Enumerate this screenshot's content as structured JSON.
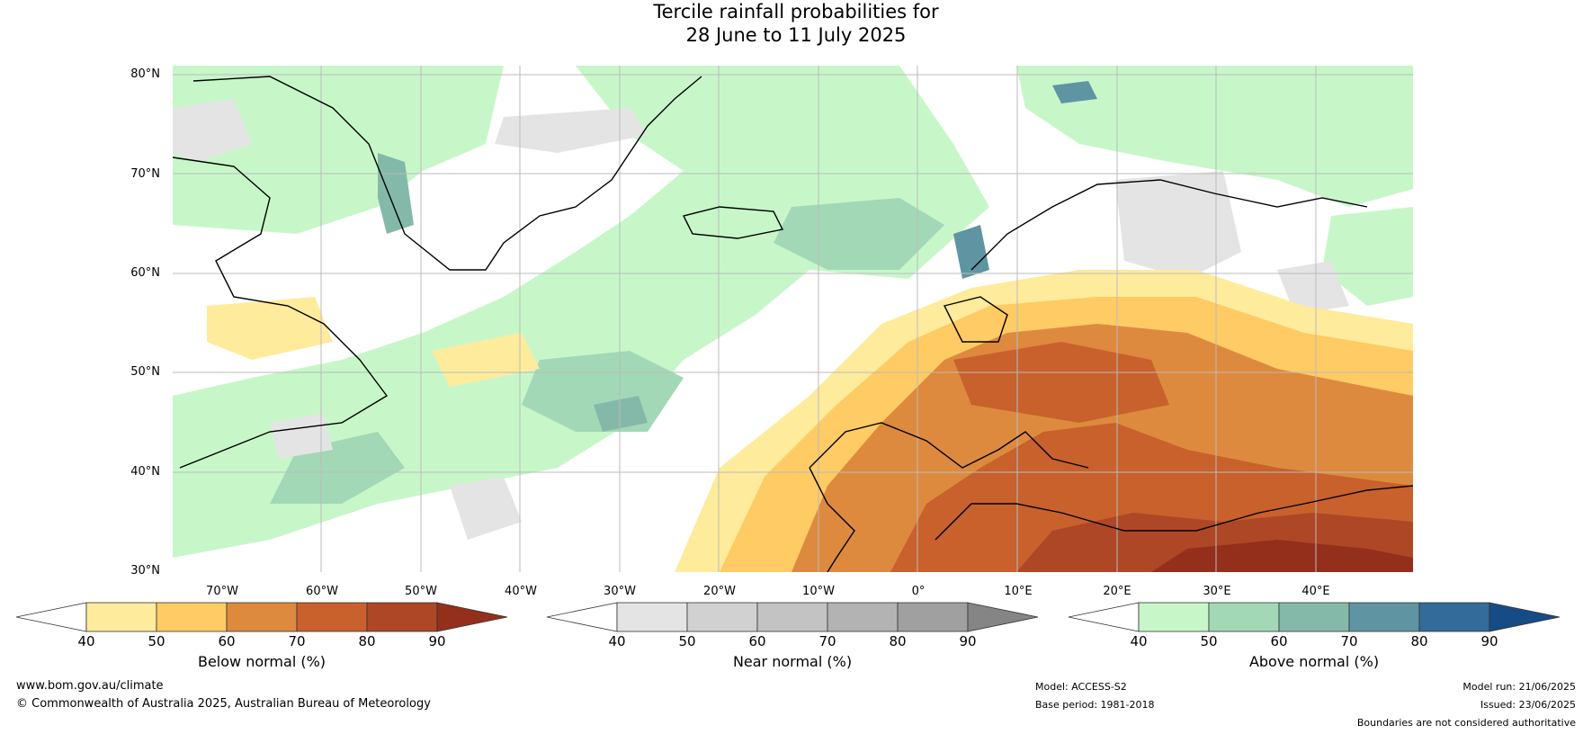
{
  "title": {
    "line1": "Tercile rainfall probabilities for",
    "line2": "28 June to 11 July 2025"
  },
  "lat_ticks": [
    "80°N",
    "70°N",
    "60°N",
    "50°N",
    "40°N",
    "30°N"
  ],
  "lon_ticks": [
    "70°W",
    "60°W",
    "50°W",
    "40°W",
    "30°W",
    "20°W",
    "10°W",
    "0°",
    "10°E",
    "20°E",
    "30°E",
    "40°E"
  ],
  "colorbars": [
    {
      "label": "Below normal (%)",
      "ticks": [
        "40",
        "50",
        "60",
        "70",
        "80",
        "90"
      ],
      "colors": [
        "#ffffff",
        "#ffeb9c",
        "#fecb64",
        "#dd8a3e",
        "#c8612c",
        "#ae4725",
        "#942f1c"
      ]
    },
    {
      "label": "Near normal (%)",
      "ticks": [
        "40",
        "50",
        "60",
        "70",
        "80",
        "90"
      ],
      "colors": [
        "#ffffff",
        "#e4e4e4",
        "#d1d1d1",
        "#c3c3c3",
        "#b3b3b3",
        "#a0a0a0",
        "#858585"
      ]
    },
    {
      "label": "Above normal (%)",
      "ticks": [
        "40",
        "50",
        "60",
        "70",
        "80",
        "90"
      ],
      "colors": [
        "#ffffff",
        "#c7f7c9",
        "#a2d8b6",
        "#84b9aa",
        "#5f94a2",
        "#336b9b",
        "#164c85"
      ]
    }
  ],
  "footer": {
    "website": "www.bom.gov.au/climate",
    "copyright": "© Commonwealth of Australia 2025, Australian Bureau of Meteorology",
    "model": "Model: ACCESS-S2",
    "base_period": "Base period: 1981-2018",
    "model_run": "Model run: 21/06/2025",
    "issued": "Issued: 23/06/2025",
    "disclaimer": "Boundaries are not considered authoritative"
  }
}
